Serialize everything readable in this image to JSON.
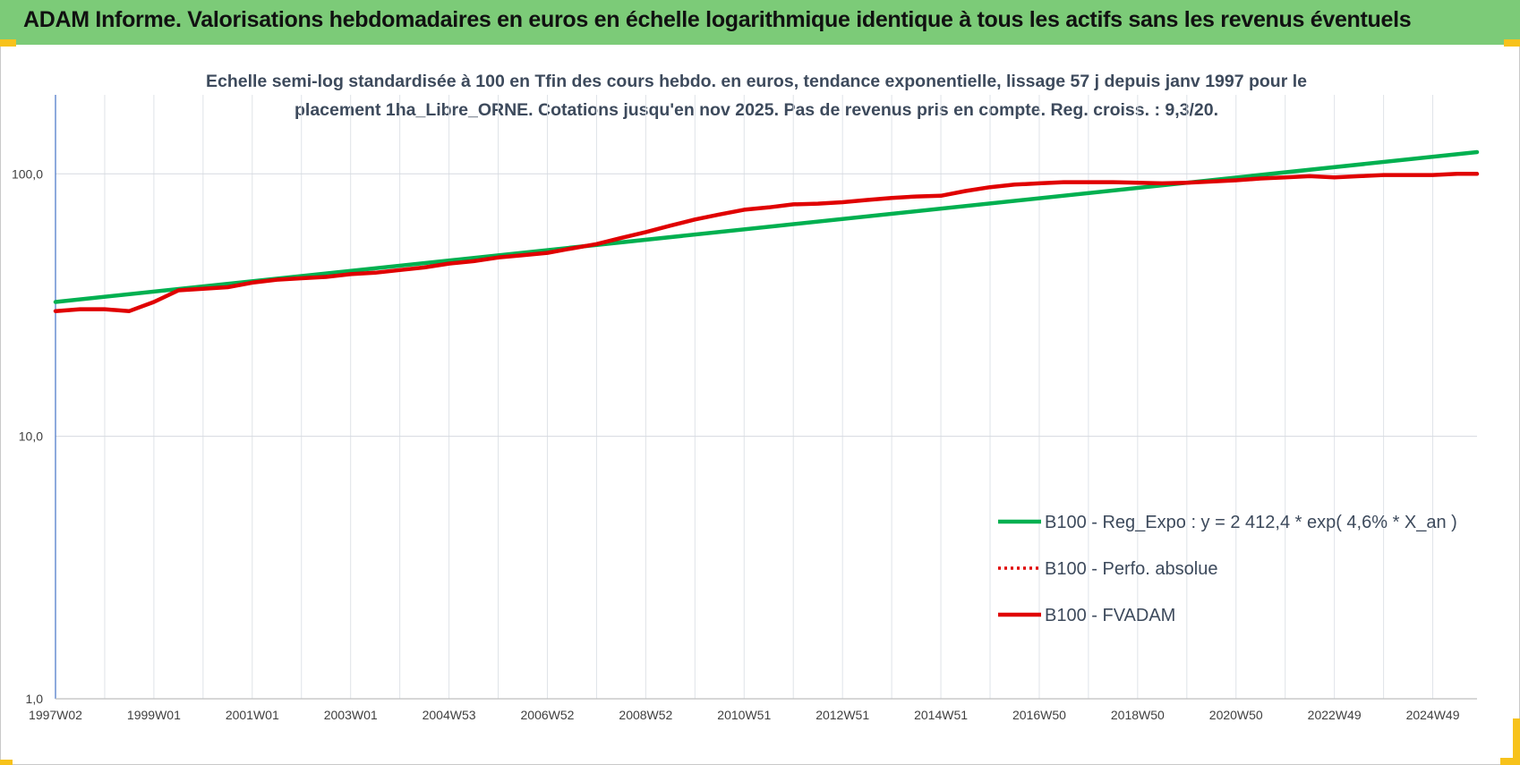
{
  "header": {
    "title": "ADAM Informe. Valorisations hebdomadaires en euros en échelle logarithmique identique à tous les actifs sans les revenus éventuels"
  },
  "chart_data": {
    "type": "line",
    "title_lines": [
      "Echelle semi-log standardisée à 100 en Tfin des cours hebdo. en euros, tendance exponentielle, lissage 57 j depuis janv 1997 pour le",
      "placement 1ha_Libre_ORNE. Cotations jusqu'en nov 2025. Pas de revenus pris en compte. Reg. croiss. : 9,3/20."
    ],
    "y_scale": "log",
    "ylim": [
      1,
      200
    ],
    "y_ticks": [
      1,
      10,
      100
    ],
    "y_tick_labels": [
      "1,0",
      "10,0",
      "100,0"
    ],
    "xlim": [
      1997.0,
      2025.9
    ],
    "x_ticks": [
      1997.0,
      1999.0,
      2001.0,
      2003.0,
      2005.0,
      2007.0,
      2009.0,
      2011.0,
      2013.0,
      2015.0,
      2017.0,
      2019.0,
      2021.0,
      2023.0,
      2025.0
    ],
    "x_tick_labels": [
      "1997W02",
      "1999W01",
      "2001W01",
      "2003W01",
      "2004W53",
      "2006W52",
      "2008W52",
      "2010W51",
      "2012W51",
      "2014W51",
      "2016W50",
      "2018W50",
      "2020W50",
      "2022W49",
      "2024W49"
    ],
    "grid": true,
    "legend_position": "right",
    "series": [
      {
        "name": "B100 - Reg_Expo : y = 2 412,4 * exp( 4,6% *  X_an )",
        "color": "#00b050",
        "style": "solid",
        "x": [
          1997.0,
          2025.9
        ],
        "y": [
          32.5,
          121
        ]
      },
      {
        "name": "B100 - Perfo. absolue",
        "color": "#e00000",
        "style": "dotted",
        "x": [],
        "y": []
      },
      {
        "name": "B100 - FVADAM",
        "color": "#e00000",
        "style": "solid",
        "x": [
          1997.0,
          1997.5,
          1998.0,
          1998.5,
          1999.0,
          1999.5,
          2000.0,
          2000.5,
          2001.0,
          2001.5,
          2002.0,
          2002.5,
          2003.0,
          2003.5,
          2004.0,
          2004.5,
          2005.0,
          2005.5,
          2006.0,
          2006.5,
          2007.0,
          2007.5,
          2008.0,
          2008.5,
          2009.0,
          2009.5,
          2010.0,
          2010.5,
          2011.0,
          2011.5,
          2012.0,
          2012.5,
          2013.0,
          2013.5,
          2014.0,
          2014.5,
          2015.0,
          2015.5,
          2016.0,
          2016.5,
          2017.0,
          2017.5,
          2018.0,
          2018.5,
          2019.0,
          2019.5,
          2020.0,
          2020.5,
          2021.0,
          2021.5,
          2022.0,
          2022.5,
          2023.0,
          2023.5,
          2024.0,
          2024.5,
          2025.0,
          2025.5,
          2025.9
        ],
        "y": [
          30,
          30.5,
          30.5,
          30,
          32.5,
          36,
          36.5,
          37,
          38.5,
          39.5,
          40,
          40.5,
          41.5,
          42,
          43,
          44,
          45.5,
          46.5,
          48,
          49,
          50,
          52,
          54,
          57,
          60,
          63.5,
          67,
          70,
          73,
          74.5,
          76.5,
          77,
          78,
          79.5,
          81,
          82,
          82.5,
          86,
          89,
          91,
          92,
          93,
          93,
          93,
          92.5,
          92,
          92.5,
          93.5,
          94.5,
          96,
          97,
          98,
          97,
          98,
          99,
          99,
          99,
          100,
          100
        ]
      }
    ]
  }
}
